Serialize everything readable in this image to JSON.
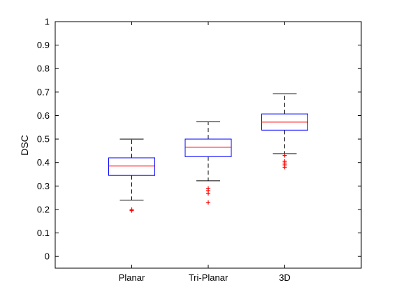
{
  "chart_data": {
    "type": "box",
    "title": "",
    "xlabel": "",
    "ylabel": "DSC",
    "ylim": [
      -0.05,
      1.0
    ],
    "yticks": [
      0,
      0.1,
      0.2,
      0.3,
      0.4,
      0.5,
      0.6,
      0.7,
      0.8,
      0.9,
      1
    ],
    "ytick_labels": [
      "0",
      "0.1",
      "0.2",
      "0.3",
      "0.4",
      "0.5",
      "0.6",
      "0.7",
      "0.8",
      "0.9",
      "1"
    ],
    "grid": false,
    "categories": [
      "Planar",
      "Tri-Planar",
      "3D"
    ],
    "boxes": [
      {
        "category": "Planar",
        "whisker_low": 0.24,
        "q1": 0.345,
        "median": 0.385,
        "q3": 0.42,
        "whisker_high": 0.5,
        "outliers": [
          0.195,
          0.2
        ]
      },
      {
        "category": "Tri-Planar",
        "whisker_low": 0.322,
        "q1": 0.425,
        "median": 0.465,
        "q3": 0.5,
        "whisker_high": 0.573,
        "outliers": [
          0.23,
          0.268,
          0.28,
          0.29
        ]
      },
      {
        "category": "3D",
        "whisker_low": 0.438,
        "q1": 0.538,
        "median": 0.572,
        "q3": 0.607,
        "whisker_high": 0.693,
        "outliers": [
          0.38,
          0.39,
          0.398,
          0.405,
          0.43
        ]
      }
    ],
    "colors": {
      "box": "#0000ff",
      "median": "#ff0000",
      "whisker": "#000000",
      "outlier": "#ff0000"
    }
  }
}
